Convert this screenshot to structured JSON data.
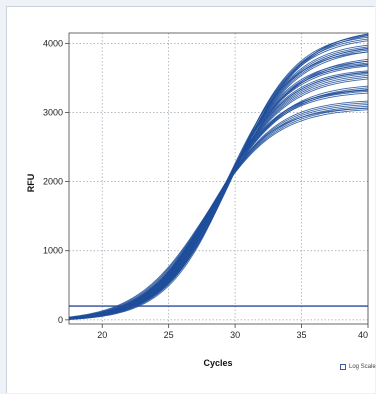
{
  "chart_data": {
    "type": "line",
    "title": "",
    "xlabel": "Cycles",
    "ylabel": "RFU",
    "xlim": [
      17.5,
      40
    ],
    "ylim": [
      -60,
      4150
    ],
    "x_ticks": [
      20,
      25,
      30,
      35,
      40
    ],
    "y_ticks": [
      0,
      1000,
      2000,
      3000,
      4000
    ],
    "grid": true,
    "threshold": 200,
    "baseline": -20,
    "curve_color": "#1f4e9a",
    "threshold_color": "#2a4a9a",
    "series_model": "sigmoid amplification curves, ~40 overlapping traces",
    "series": [
      {
        "midpoint": 28.0,
        "plateau": 3150
      },
      {
        "midpoint": 28.4,
        "plateau": 3380
      },
      {
        "midpoint": 28.8,
        "plateau": 3600
      },
      {
        "midpoint": 29.1,
        "plateau": 3800
      },
      {
        "midpoint": 29.4,
        "plateau": 4000
      },
      {
        "midpoint": 29.7,
        "plateau": 4180
      }
    ],
    "series_spread": 0.18,
    "curve_count": 42
  },
  "legend": {
    "log_scale_label": "Log Scale"
  }
}
